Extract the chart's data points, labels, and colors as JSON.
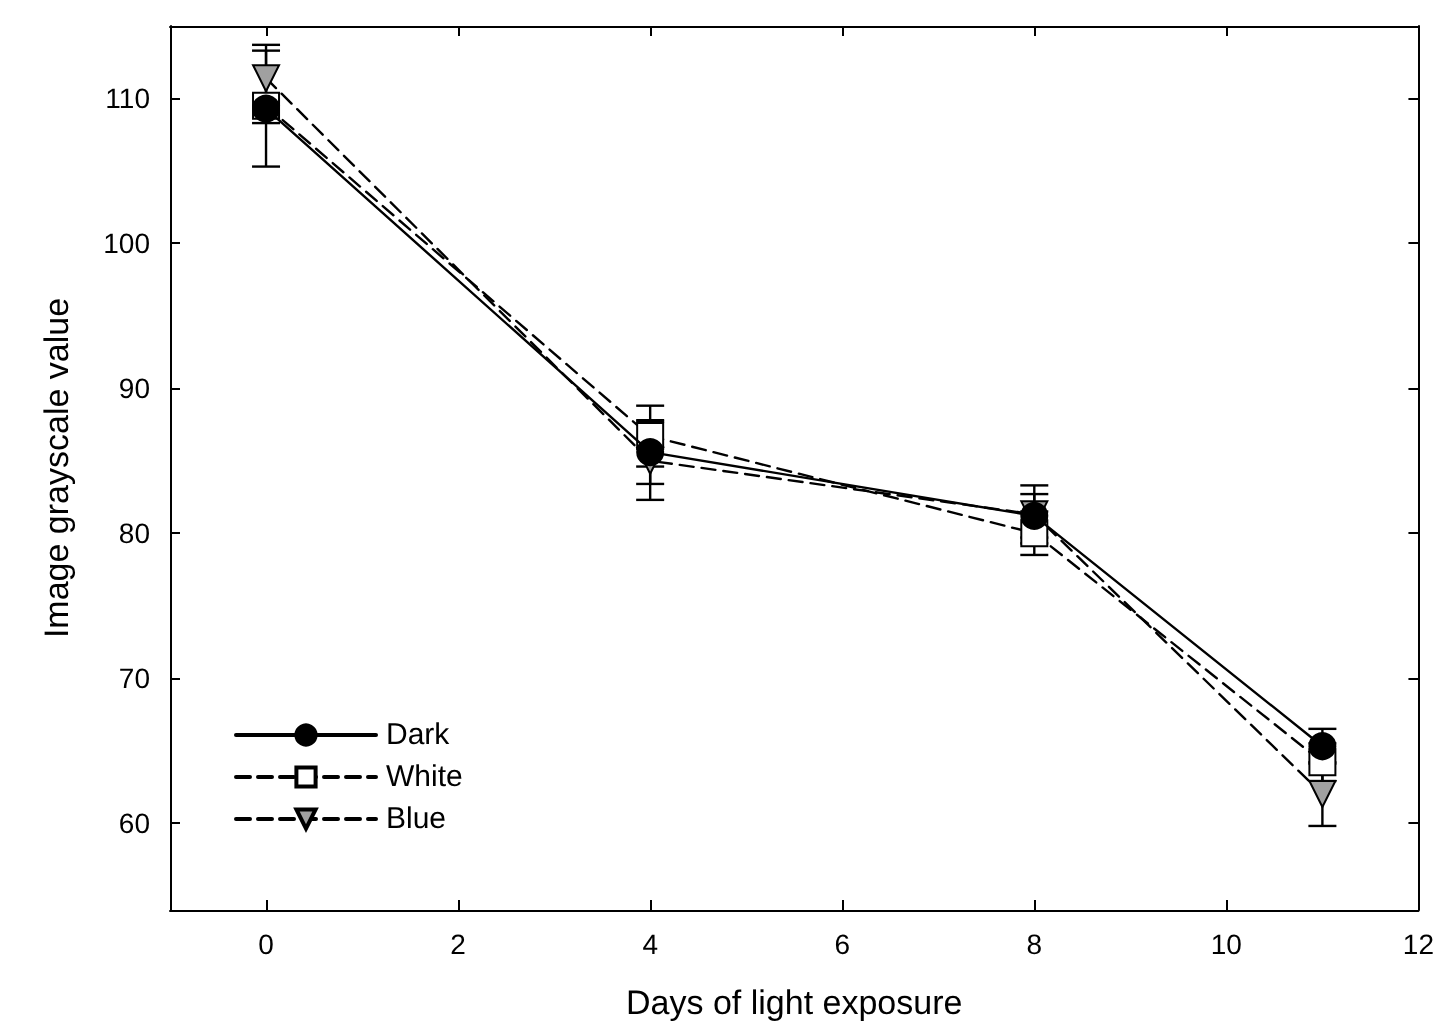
{
  "chart_data": {
    "type": "line",
    "xlabel": "Days of light exposure",
    "ylabel": "Image grayscale value",
    "x": [
      0,
      4,
      8,
      11
    ],
    "xlim": [
      -1,
      12
    ],
    "xticks": [
      0,
      2,
      4,
      6,
      8,
      10,
      12
    ],
    "ylim": [
      54,
      115
    ],
    "yticks": [
      60,
      70,
      80,
      90,
      100,
      110
    ],
    "grid": false,
    "legend": "bottom left",
    "series": [
      {
        "name": "Dark",
        "color": "#000000",
        "marker": "circle",
        "line_style": "solid",
        "values": [
          109.3,
          85.6,
          81.2,
          65.3
        ],
        "errors": [
          1,
          2.2,
          1.5,
          1.2
        ]
      },
      {
        "name": "White",
        "color": "#000000",
        "marker": "square",
        "line_style": "dashed",
        "values": [
          109.5,
          86.7,
          80.0,
          64.2
        ],
        "errors": [
          4.2,
          2.1,
          1.5,
          1.3
        ]
      },
      {
        "name": "Blue",
        "color": "#a0a0a0",
        "marker": "triangle",
        "line_style": "dashed",
        "values": [
          111.4,
          85.0,
          81.3,
          62.0
        ],
        "errors": [
          1.9,
          2.7,
          2,
          2.2
        ]
      }
    ]
  }
}
